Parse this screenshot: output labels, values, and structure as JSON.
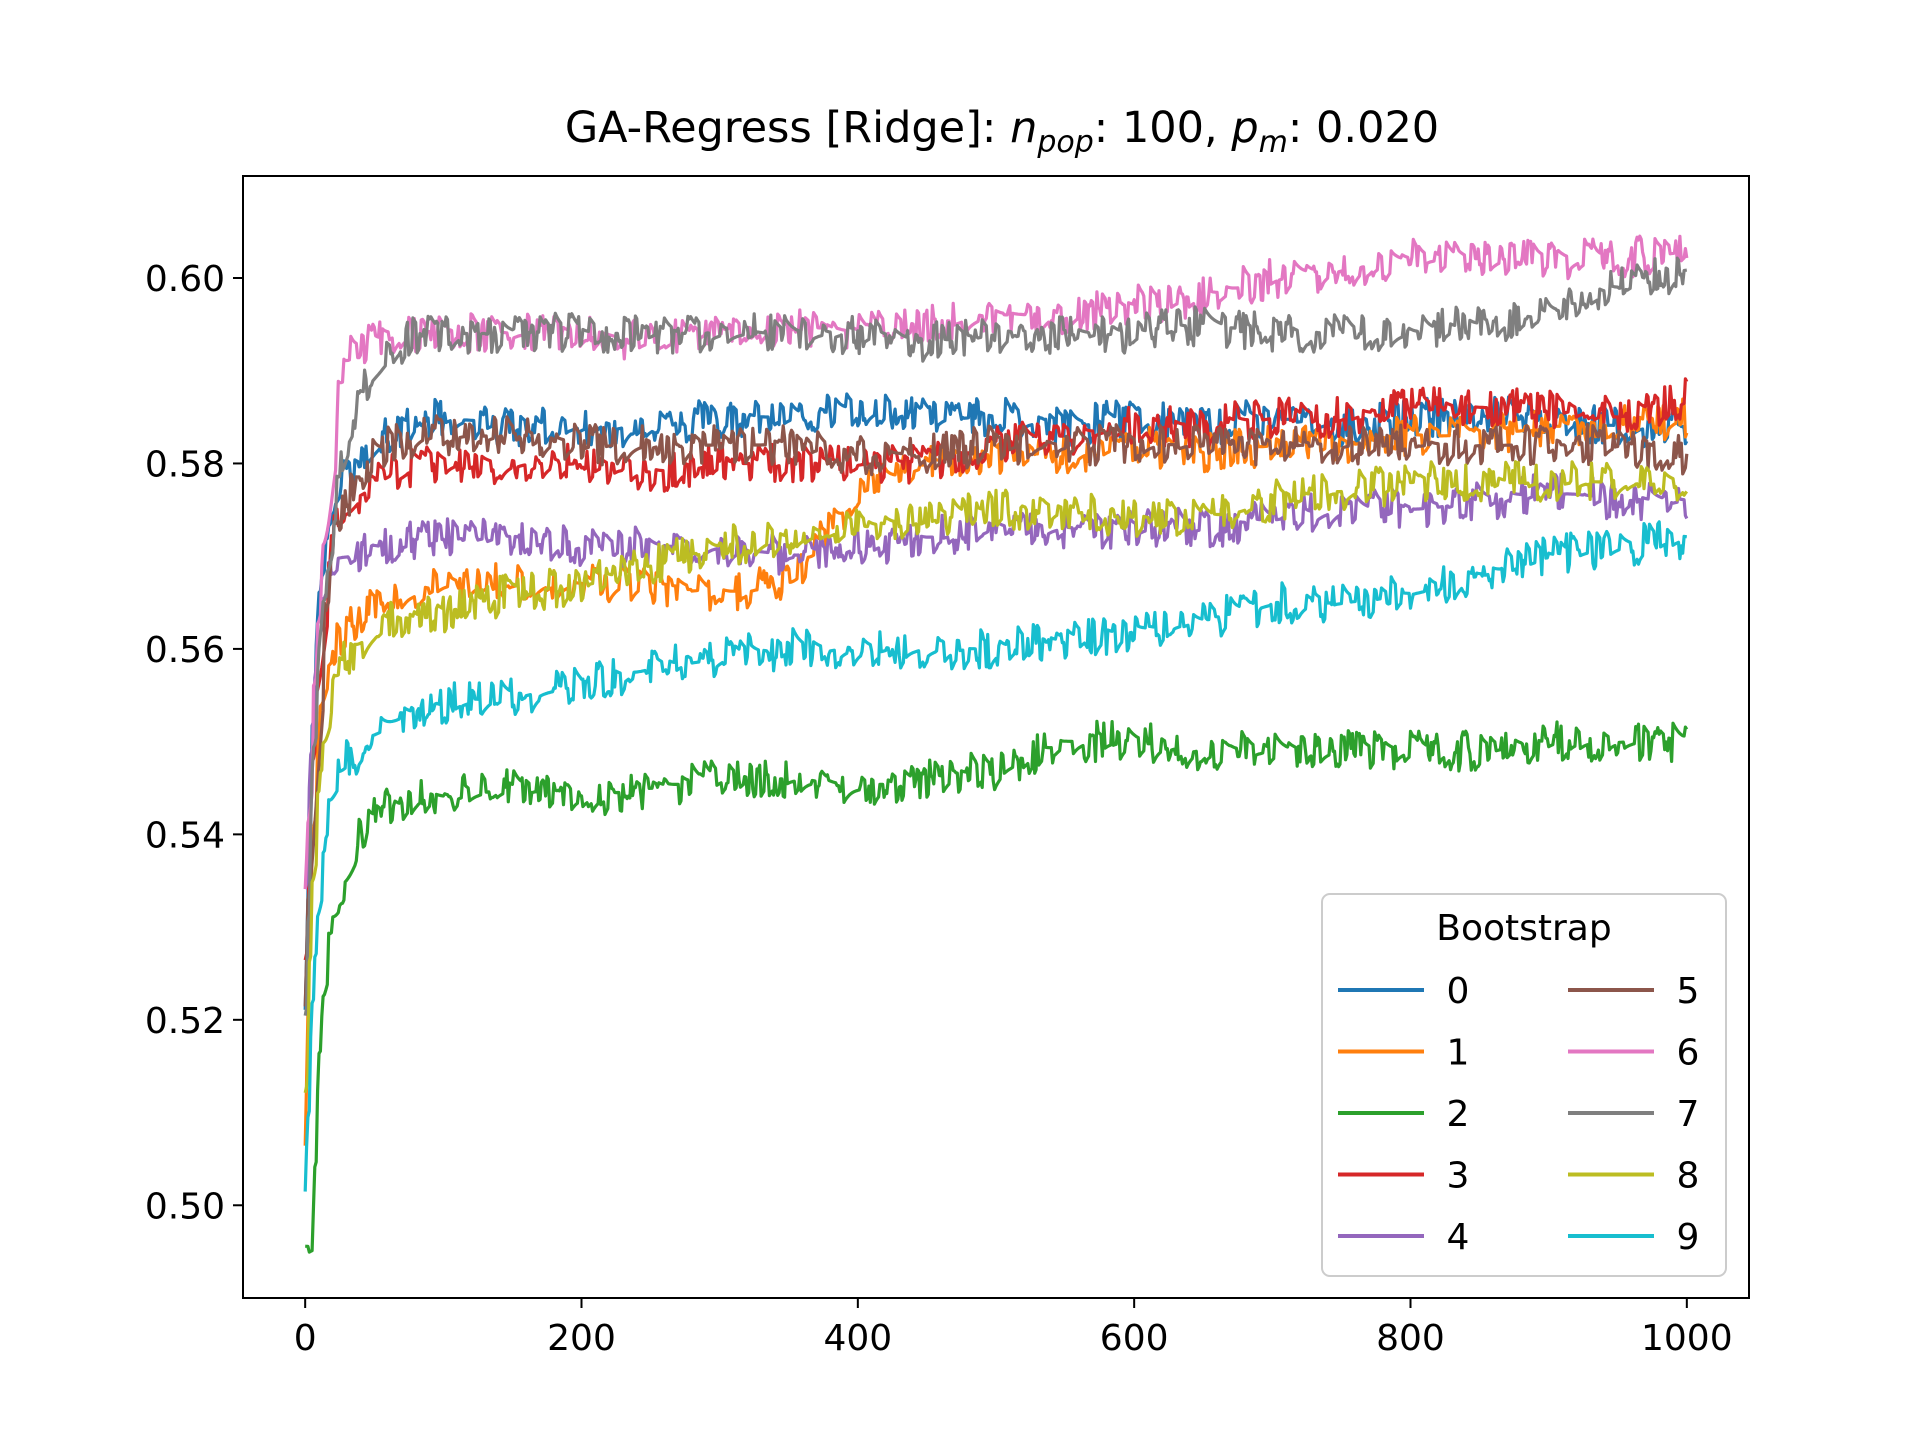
{
  "chart_data": {
    "type": "line",
    "title": {
      "prefix": "GA-Regress [Ridge]: ",
      "var1": "n",
      "sub1": "pop",
      "mid": ": 100, ",
      "var2": "p",
      "sub2": "m",
      "suffix": ": 0.020"
    },
    "xlabel": "",
    "ylabel": "",
    "xlim": [
      -45,
      1045
    ],
    "ylim": [
      0.49,
      0.611
    ],
    "xticks": [
      0,
      200,
      400,
      600,
      800,
      1000
    ],
    "xtick_labels": [
      "0",
      "200",
      "400",
      "600",
      "800",
      "1000"
    ],
    "yticks": [
      0.5,
      0.52,
      0.54,
      0.56,
      0.58,
      0.6
    ],
    "ytick_labels": [
      "0.50",
      "0.52",
      "0.54",
      "0.56",
      "0.58",
      "0.60"
    ],
    "grid": false,
    "legend": {
      "title": "Bootstrap",
      "location": "lower-right",
      "columns": 2
    },
    "x": [
      0,
      5,
      10,
      15,
      20,
      25,
      30,
      40,
      50,
      60,
      70,
      80,
      100,
      150,
      200,
      250,
      300,
      350,
      400,
      450,
      500,
      550,
      600,
      650,
      700,
      750,
      800,
      850,
      900,
      950,
      1000
    ],
    "series": [
      {
        "name": "0",
        "color": "#1f77b4",
        "noise": 0.0022,
        "values": [
          0.521,
          0.552,
          0.566,
          0.572,
          0.576,
          0.578,
          0.579,
          0.58,
          0.582,
          0.583,
          0.584,
          0.585,
          0.585,
          0.584,
          0.584,
          0.584,
          0.585,
          0.585,
          0.586,
          0.585,
          0.585,
          0.584,
          0.585,
          0.584,
          0.585,
          0.584,
          0.585,
          0.585,
          0.585,
          0.584,
          0.584
        ]
      },
      {
        "name": "1",
        "color": "#ff7f0e",
        "noise": 0.0022,
        "values": [
          0.507,
          0.54,
          0.553,
          0.558,
          0.56,
          0.561,
          0.562,
          0.563,
          0.565,
          0.566,
          0.566,
          0.566,
          0.567,
          0.567,
          0.567,
          0.567,
          0.566,
          0.567,
          0.577,
          0.58,
          0.581,
          0.581,
          0.582,
          0.581,
          0.582,
          0.582,
          0.583,
          0.583,
          0.584,
          0.584,
          0.585
        ]
      },
      {
        "name": "2",
        "color": "#2ca02c",
        "noise": 0.0022,
        "values": [
          0.4955,
          0.4955,
          0.516,
          0.526,
          0.531,
          0.533,
          0.536,
          0.54,
          0.542,
          0.543,
          0.543,
          0.544,
          0.544,
          0.545,
          0.544,
          0.545,
          0.546,
          0.546,
          0.545,
          0.546,
          0.547,
          0.55,
          0.55,
          0.549,
          0.549,
          0.549,
          0.549,
          0.549,
          0.55,
          0.55,
          0.55
        ]
      },
      {
        "name": "3",
        "color": "#d62728",
        "noise": 0.0022,
        "values": [
          0.527,
          0.548,
          0.56,
          0.568,
          0.572,
          0.574,
          0.575,
          0.577,
          0.578,
          0.579,
          0.579,
          0.58,
          0.58,
          0.58,
          0.58,
          0.579,
          0.58,
          0.58,
          0.58,
          0.58,
          0.582,
          0.583,
          0.584,
          0.584,
          0.585,
          0.585,
          0.586,
          0.586,
          0.586,
          0.585,
          0.587
        ]
      },
      {
        "name": "4",
        "color": "#9467bd",
        "noise": 0.0022,
        "values": [
          0.534,
          0.552,
          0.563,
          0.567,
          0.569,
          0.57,
          0.57,
          0.57,
          0.571,
          0.571,
          0.571,
          0.572,
          0.572,
          0.572,
          0.571,
          0.571,
          0.571,
          0.57,
          0.571,
          0.572,
          0.573,
          0.573,
          0.573,
          0.573,
          0.574,
          0.575,
          0.575,
          0.576,
          0.577,
          0.576,
          0.576
        ]
      },
      {
        "name": "5",
        "color": "#8c564b",
        "noise": 0.0022,
        "values": [
          0.522,
          0.548,
          0.56,
          0.566,
          0.571,
          0.574,
          0.576,
          0.579,
          0.581,
          0.582,
          0.582,
          0.583,
          0.583,
          0.583,
          0.582,
          0.582,
          0.582,
          0.582,
          0.581,
          0.581,
          0.582,
          0.582,
          0.582,
          0.582,
          0.582,
          0.582,
          0.582,
          0.582,
          0.582,
          0.582,
          0.581
        ]
      },
      {
        "name": "6",
        "color": "#e377c2",
        "noise": 0.0022,
        "values": [
          0.534,
          0.553,
          0.565,
          0.575,
          0.584,
          0.588,
          0.591,
          0.593,
          0.593,
          0.594,
          0.594,
          0.594,
          0.594,
          0.594,
          0.594,
          0.593,
          0.594,
          0.595,
          0.594,
          0.595,
          0.596,
          0.596,
          0.597,
          0.598,
          0.6,
          0.601,
          0.602,
          0.602,
          0.602,
          0.602,
          0.603
        ]
      },
      {
        "name": "7",
        "color": "#7f7f7f",
        "noise": 0.0022,
        "values": [
          0.521,
          0.546,
          0.56,
          0.568,
          0.574,
          0.579,
          0.583,
          0.587,
          0.59,
          0.592,
          0.593,
          0.594,
          0.594,
          0.594,
          0.594,
          0.594,
          0.594,
          0.594,
          0.594,
          0.593,
          0.594,
          0.594,
          0.594,
          0.595,
          0.594,
          0.594,
          0.594,
          0.595,
          0.596,
          0.599,
          0.601
        ]
      },
      {
        "name": "8",
        "color": "#bcbd22",
        "noise": 0.0022,
        "values": [
          0.512,
          0.535,
          0.546,
          0.552,
          0.556,
          0.558,
          0.559,
          0.561,
          0.562,
          0.563,
          0.563,
          0.563,
          0.564,
          0.566,
          0.567,
          0.569,
          0.571,
          0.572,
          0.573,
          0.574,
          0.575,
          0.575,
          0.574,
          0.574,
          0.576,
          0.577,
          0.578,
          0.578,
          0.578,
          0.578,
          0.578
        ]
      },
      {
        "name": "9",
        "color": "#17becf",
        "noise": 0.0022,
        "values": [
          0.502,
          0.522,
          0.534,
          0.541,
          0.545,
          0.547,
          0.548,
          0.549,
          0.551,
          0.552,
          0.553,
          0.553,
          0.554,
          0.555,
          0.556,
          0.558,
          0.559,
          0.56,
          0.56,
          0.56,
          0.56,
          0.561,
          0.562,
          0.563,
          0.565,
          0.565,
          0.566,
          0.568,
          0.57,
          0.571,
          0.572
        ]
      }
    ]
  }
}
